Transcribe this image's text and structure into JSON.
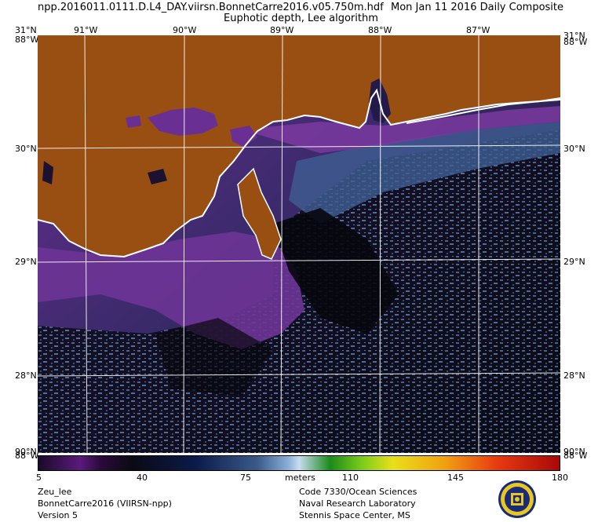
{
  "header": {
    "filename": "npp.2016011.0111.D.L4_DAY.viirsn.BonnetCarre2016.v05.750m.hdf",
    "date": "Mon Jan 11 2016 Daily Composite",
    "product": "Euphotic depth, Lee algorithm"
  },
  "axes": {
    "lon_labels": [
      "91°W",
      "90°W",
      "89°W",
      "88°W",
      "87°W"
    ],
    "lat_labels": [
      "30°N",
      "29°N",
      "28°N"
    ],
    "corner_top_left_lat": "31°N",
    "corner_top_left_lon": "88°W",
    "corner_top_right_lat": "31°N",
    "corner_top_right_lon": "88°W",
    "corner_bottom_left_lat": "90°N",
    "corner_bottom_left_lon": "88°W",
    "corner_bottom_right_lat": "90°N",
    "corner_bottom_right_lon": "88°W"
  },
  "colorbar": {
    "unit": "meters",
    "ticks": [
      "5",
      "40",
      "75",
      "110",
      "145",
      "180"
    ],
    "min": 5,
    "max": 180
  },
  "footer": {
    "left": [
      "Zeu_lee",
      "BonnetCarre2016 (VIIRSN-npp)",
      "Version 5"
    ],
    "right": [
      "Code 7330/Ocean Sciences",
      "Naval Research Laboratory",
      "Stennis Space Center, MS"
    ]
  },
  "colors": {
    "land": "#9a4f12",
    "coastline": "#ffffff",
    "shallow_water": "#6a2a8e",
    "deep_water": "#0a0a14",
    "mid_water": "#4a6a9a"
  }
}
